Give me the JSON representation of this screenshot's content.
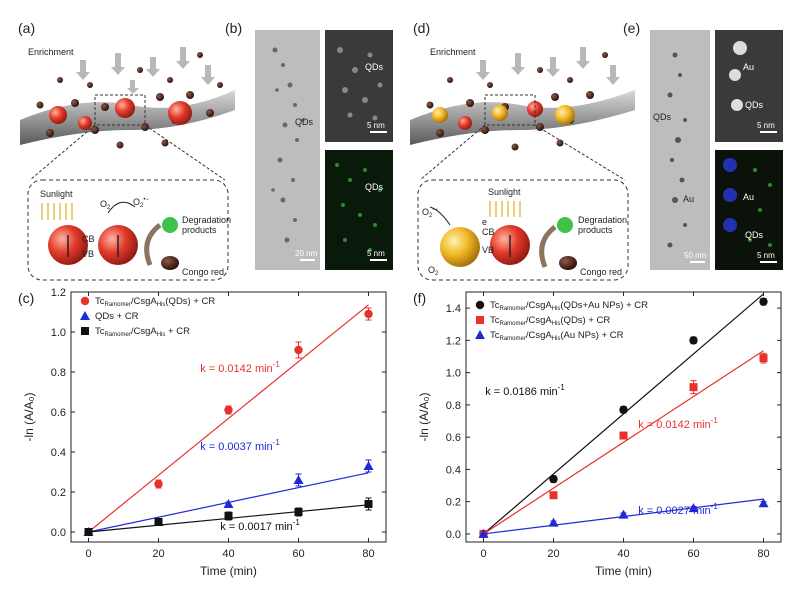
{
  "panels": {
    "a": {
      "label": "(a)",
      "enrichment": "Enrichment",
      "sunlight": "Sunlight",
      "o2": "O",
      "o2_sub": "2",
      "o2r": "O",
      "o2r_sub": "2",
      "o2r_sup": "•−",
      "cb": "CB",
      "vb": "VB",
      "degradation1": "Degradation",
      "degradation2": "products",
      "congo": "Congo red"
    },
    "b": {
      "label": "(b)",
      "qds1": "QDs",
      "qds2": "QDs",
      "qds3": "QDs",
      "scale1": "20 nm",
      "scale2": "5 nm",
      "scale3": "5 nm"
    },
    "d": {
      "label": "(d)",
      "enrichment": "Enrichment",
      "sunlight": "Sunlight",
      "o2": "O",
      "o2_sub": "2",
      "o2r": "O",
      "o2r_sub": "2",
      "o2r_sup": "•−",
      "cb": "CB",
      "vb": "VB",
      "e": "e",
      "degradation1": "Degradation",
      "degradation2": "products",
      "congo": "Congo red"
    },
    "e": {
      "label": "(e)",
      "qds1": "QDs",
      "au1": "Au",
      "au2": "Au",
      "qds2": "QDs",
      "au3": "Au",
      "qds3": "QDs",
      "scale1": "50 nm",
      "scale2": "5 nm",
      "scale3": "5 nm"
    },
    "c": {
      "label": "(c)"
    },
    "f": {
      "label": "(f)"
    }
  },
  "chart_data": [
    {
      "id": "c",
      "type": "scatter",
      "xlabel": "Time (min)",
      "ylabel": "-ln (A/A₀)",
      "xlim": [
        -5,
        85
      ],
      "ylim": [
        -0.05,
        1.2
      ],
      "xticks": [
        0,
        20,
        40,
        60,
        80
      ],
      "yticks": [
        0.0,
        0.2,
        0.4,
        0.6,
        0.8,
        1.0,
        1.2
      ],
      "yticklabels": [
        "0.0",
        "0.2",
        "0.4",
        "0.6",
        "0.8",
        "1.0",
        "1.2"
      ],
      "legend_position": "top-left",
      "series": [
        {
          "name": "Tc₁ₑₐₛₑ/CsgAₕᵢₛ(QDs) + CR",
          "legend_main": "Tc",
          "legend_sub1": "Ramomer",
          "legend_mid": "/CsgA",
          "legend_sub2": "His",
          "legend_tail": "(QDs) + CR",
          "color": "#e8312d",
          "marker": "circle",
          "x": [
            0,
            20,
            40,
            60,
            80
          ],
          "y": [
            0.0,
            0.24,
            0.61,
            0.91,
            1.09
          ],
          "err": [
            0.0,
            0.02,
            0.02,
            0.04,
            0.03
          ],
          "fit": [
            0.0,
            1.136
          ],
          "k_label": "k = 0.0142 min⁻¹",
          "k_text": "k = 0.0142 min",
          "k_sup": "-1"
        },
        {
          "name": "QDs + CR",
          "legend_main": "QDs + CR",
          "legend_sub1": "",
          "legend_mid": "",
          "legend_sub2": "",
          "legend_tail": "",
          "color": "#1f2ad6",
          "marker": "triangle",
          "x": [
            0,
            20,
            40,
            60,
            80
          ],
          "y": [
            0.0,
            0.05,
            0.14,
            0.26,
            0.33
          ],
          "err": [
            0.0,
            0.01,
            0.01,
            0.03,
            0.03
          ],
          "fit": [
            0.0,
            0.296
          ],
          "k_label": "k = 0.0037 min⁻¹",
          "k_text": "k = 0.0037 min",
          "k_sup": "-1"
        },
        {
          "name": "Tc/CsgA + CR",
          "legend_main": "Tc",
          "legend_sub1": "Ramomer",
          "legend_mid": "/CsgA",
          "legend_sub2": "His",
          "legend_tail": " + CR",
          "color": "#111111",
          "marker": "square",
          "x": [
            0,
            20,
            40,
            60,
            80
          ],
          "y": [
            0.0,
            0.05,
            0.08,
            0.1,
            0.14
          ],
          "err": [
            0.0,
            0.01,
            0.02,
            0.02,
            0.03
          ],
          "fit": [
            0.0,
            0.136
          ],
          "k_label": "k = 0.0017 min⁻¹",
          "k_text": "k = 0.0017 min",
          "k_sup": "-1"
        }
      ]
    },
    {
      "id": "f",
      "type": "scatter",
      "xlabel": "Time (min)",
      "ylabel": "-ln (A/A₀)",
      "xlim": [
        -5,
        85
      ],
      "ylim": [
        -0.05,
        1.5
      ],
      "xticks": [
        0,
        20,
        40,
        60,
        80
      ],
      "yticks": [
        0.0,
        0.2,
        0.4,
        0.6,
        0.8,
        1.0,
        1.2,
        1.4
      ],
      "yticklabels": [
        "0.0",
        "0.2",
        "0.4",
        "0.6",
        "0.8",
        "1.0",
        "1.2",
        "1.4"
      ],
      "legend_position": "top-left",
      "series": [
        {
          "name": "Tc/CsgA(QDs+Au NPs) + CR",
          "legend_main": "Tc",
          "legend_sub1": "Ramomer",
          "legend_mid": "/CsgA",
          "legend_sub2": "His",
          "legend_tail": "(QDs+Au NPs) + CR",
          "color": "#111111",
          "marker": "circle",
          "x": [
            0,
            20,
            40,
            60,
            80
          ],
          "y": [
            0.0,
            0.34,
            0.77,
            1.2,
            1.44
          ],
          "err": [
            0.0,
            0.02,
            0.02,
            0.02,
            0.02
          ],
          "fit": [
            0.0,
            1.488
          ],
          "k_label": "k = 0.0186 min⁻¹",
          "k_text": "k = 0.0186 min",
          "k_sup": "-1"
        },
        {
          "name": "Tc/CsgA(QDs) + CR",
          "legend_main": "Tc",
          "legend_sub1": "Ramomer",
          "legend_mid": "/CsgA",
          "legend_sub2": "His",
          "legend_tail": "(QDs) + CR",
          "color": "#e8312d",
          "marker": "square",
          "x": [
            0,
            20,
            40,
            60,
            80
          ],
          "y": [
            0.0,
            0.24,
            0.61,
            0.91,
            1.09
          ],
          "err": [
            0.0,
            0.02,
            0.02,
            0.04,
            0.03
          ],
          "fit": [
            0.0,
            1.136
          ],
          "k_label": "k = 0.0142 min⁻¹",
          "k_text": "k = 0.0142 min",
          "k_sup": "-1"
        },
        {
          "name": "Tc/CsgA(Au NPs) + CR",
          "legend_main": "Tc",
          "legend_sub1": "Ramomer",
          "legend_mid": "/CsgA",
          "legend_sub2": "His",
          "legend_tail": "(Au NPs) + CR",
          "color": "#1f2ad6",
          "marker": "triangle",
          "x": [
            0,
            20,
            40,
            60,
            80
          ],
          "y": [
            0.0,
            0.07,
            0.12,
            0.16,
            0.19
          ],
          "err": [
            0.0,
            0.01,
            0.01,
            0.01,
            0.01
          ],
          "fit": [
            0.0,
            0.216
          ],
          "k_label": "k = 0.0027 min⁻¹",
          "k_text": "k = 0.0027 min",
          "k_sup": "-1"
        }
      ]
    }
  ]
}
